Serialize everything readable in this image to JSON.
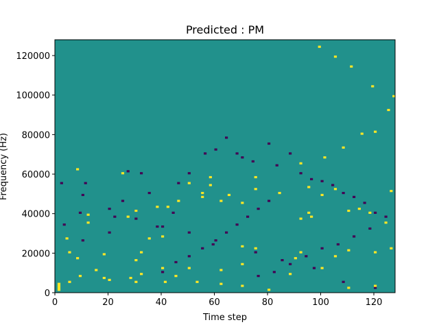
{
  "chart_data": {
    "type": "heatmap",
    "title": "Predicted : PM",
    "xlabel": "Time step",
    "ylabel": "Frequency (Hz)",
    "xlim": [
      0,
      128
    ],
    "ylim": [
      0,
      128000
    ],
    "x_ticks": [
      0,
      20,
      40,
      60,
      80,
      100,
      120
    ],
    "y_ticks": [
      0,
      20000,
      40000,
      60000,
      80000,
      100000,
      120000
    ],
    "x_tick_labels": [
      "0",
      "20",
      "40",
      "60",
      "80",
      "100",
      "120"
    ],
    "y_tick_labels": [
      "0",
      "20000",
      "40000",
      "60000",
      "80000",
      "100000",
      "120000"
    ],
    "n_time_steps": 128,
    "n_freq_bins": 128,
    "background_value": 0,
    "value_colors": {
      "-1": "#440154",
      "0": "#21918c",
      "1": "#fde725"
    },
    "high_value_cells": [
      [
        1,
        1
      ],
      [
        1,
        2
      ],
      [
        1,
        3
      ],
      [
        1,
        4
      ],
      [
        5,
        5
      ],
      [
        9,
        8
      ],
      [
        18,
        7
      ],
      [
        28,
        7
      ],
      [
        32,
        9
      ],
      [
        41,
        5
      ],
      [
        53,
        5
      ],
      [
        62,
        4
      ],
      [
        70,
        3
      ],
      [
        80,
        1
      ],
      [
        110,
        2
      ],
      [
        20,
        6
      ],
      [
        30,
        5
      ],
      [
        45,
        8
      ],
      [
        88,
        9
      ],
      [
        120,
        3
      ],
      [
        15,
        11
      ],
      [
        50,
        12
      ],
      [
        62,
        11
      ],
      [
        70,
        14
      ],
      [
        100,
        12
      ],
      [
        8,
        17
      ],
      [
        30,
        16
      ],
      [
        40,
        12
      ],
      [
        90,
        17
      ],
      [
        105,
        18
      ],
      [
        92,
        20
      ],
      [
        110,
        21
      ],
      [
        120,
        20
      ],
      [
        126,
        22
      ],
      [
        5,
        20
      ],
      [
        18,
        19
      ],
      [
        32,
        20
      ],
      [
        35,
        27
      ],
      [
        40,
        28
      ],
      [
        70,
        23
      ],
      [
        75,
        22
      ],
      [
        12,
        39
      ],
      [
        27,
        38
      ],
      [
        30,
        41
      ],
      [
        38,
        43
      ],
      [
        42,
        43
      ],
      [
        46,
        46
      ],
      [
        55,
        48
      ],
      [
        62,
        46
      ],
      [
        70,
        45
      ],
      [
        92,
        37
      ],
      [
        96,
        38
      ],
      [
        110,
        41
      ],
      [
        4,
        27
      ],
      [
        12,
        35
      ],
      [
        8,
        62
      ],
      [
        25,
        60
      ],
      [
        58,
        58
      ],
      [
        75,
        58
      ],
      [
        95,
        40
      ],
      [
        114,
        42
      ],
      [
        118,
        40
      ],
      [
        124,
        35
      ],
      [
        50,
        55
      ],
      [
        55,
        50
      ],
      [
        58,
        54
      ],
      [
        65,
        49
      ],
      [
        75,
        52
      ],
      [
        84,
        50
      ],
      [
        95,
        53
      ],
      [
        105,
        52
      ],
      [
        100,
        49
      ],
      [
        126,
        51
      ],
      [
        92,
        65
      ],
      [
        101,
        68
      ],
      [
        108,
        73
      ],
      [
        115,
        80
      ],
      [
        120,
        81
      ],
      [
        125,
        92
      ],
      [
        127,
        99
      ],
      [
        119,
        104
      ],
      [
        111,
        114
      ],
      [
        105,
        119
      ],
      [
        99,
        124
      ]
    ],
    "low_value_cells": [
      [
        120,
        2
      ],
      [
        108,
        5
      ],
      [
        97,
        12
      ],
      [
        85,
        16
      ],
      [
        75,
        20
      ],
      [
        59,
        24
      ],
      [
        50,
        30
      ],
      [
        40,
        33
      ],
      [
        30,
        37
      ],
      [
        20,
        42
      ],
      [
        10,
        49
      ],
      [
        2,
        55
      ],
      [
        3,
        34
      ],
      [
        10,
        26
      ],
      [
        9,
        40
      ],
      [
        11,
        55
      ],
      [
        20,
        30
      ],
      [
        22,
        38
      ],
      [
        25,
        46
      ],
      [
        27,
        61
      ],
      [
        30,
        41
      ],
      [
        35,
        50
      ],
      [
        32,
        60
      ],
      [
        38,
        33
      ],
      [
        44,
        40
      ],
      [
        46,
        55
      ],
      [
        50,
        60
      ],
      [
        56,
        70
      ],
      [
        60,
        72
      ],
      [
        64,
        78
      ],
      [
        68,
        70
      ],
      [
        70,
        68
      ],
      [
        74,
        66
      ],
      [
        80,
        75
      ],
      [
        83,
        64
      ],
      [
        88,
        70
      ],
      [
        92,
        60
      ],
      [
        96,
        57
      ],
      [
        100,
        56
      ],
      [
        104,
        54
      ],
      [
        108,
        50
      ],
      [
        112,
        48
      ],
      [
        116,
        45
      ],
      [
        120,
        40
      ],
      [
        124,
        38
      ],
      [
        118,
        32
      ],
      [
        112,
        28
      ],
      [
        106,
        24
      ],
      [
        100,
        22
      ],
      [
        94,
        18
      ],
      [
        88,
        14
      ],
      [
        82,
        10
      ],
      [
        76,
        8
      ],
      [
        40,
        10
      ],
      [
        45,
        15
      ],
      [
        50,
        18
      ],
      [
        55,
        22
      ],
      [
        60,
        26
      ],
      [
        64,
        30
      ],
      [
        68,
        34
      ],
      [
        72,
        38
      ],
      [
        76,
        42
      ],
      [
        80,
        46
      ]
    ]
  }
}
